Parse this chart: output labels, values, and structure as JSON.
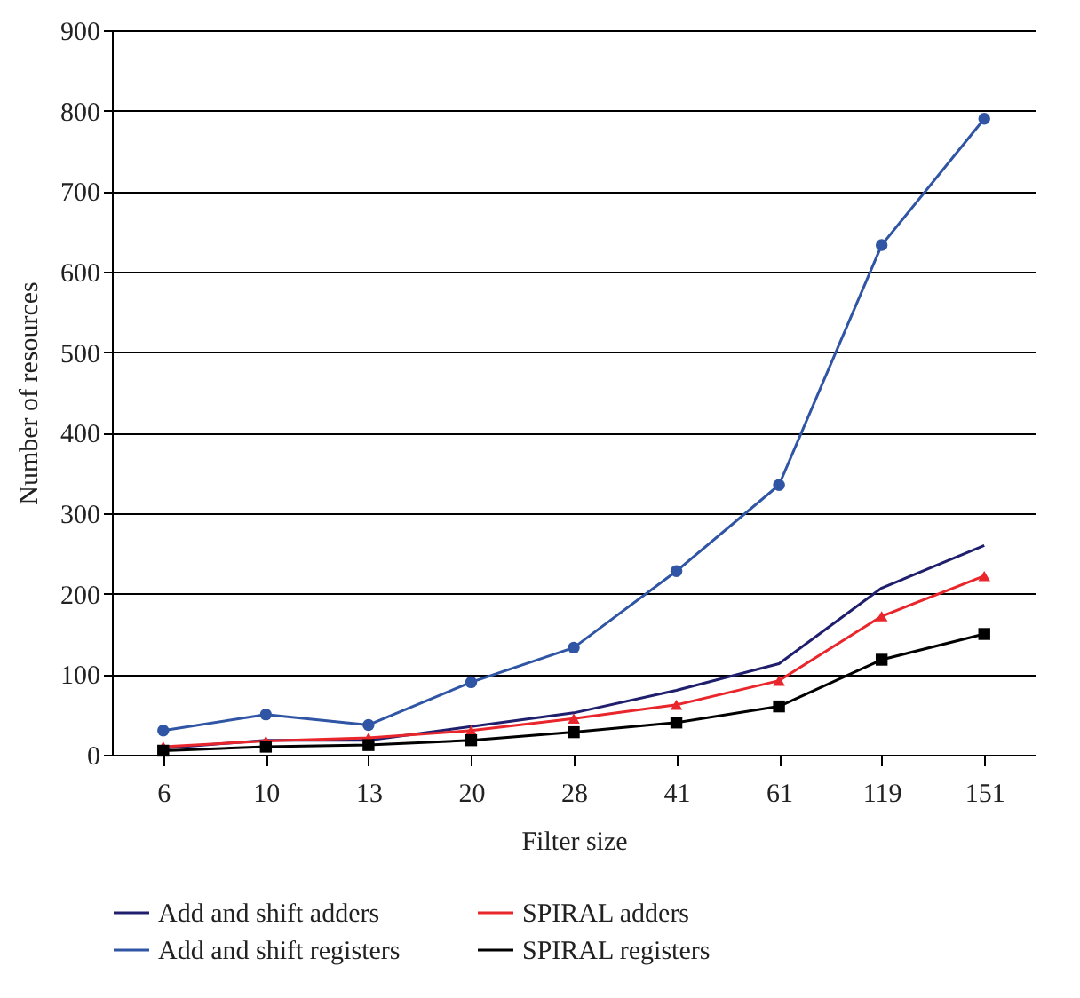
{
  "chart_data": {
    "type": "line",
    "xlabel": "Filter size",
    "ylabel": "Number of resources",
    "categories": [
      "6",
      "10",
      "13",
      "20",
      "28",
      "41",
      "61",
      "119",
      "151"
    ],
    "ylim": [
      0,
      900
    ],
    "yticks": [
      0,
      100,
      200,
      300,
      400,
      500,
      600,
      700,
      800,
      900
    ],
    "grid": "y",
    "legend": "bottom",
    "series": [
      {
        "name": "Add and shift adders",
        "color": "#1f1f6e",
        "marker": "none",
        "values": [
          8,
          18,
          18,
          35,
          52,
          80,
          113,
          207,
          260
        ]
      },
      {
        "name": "SPIRAL adders",
        "color": "#e8262b",
        "marker": "triangle",
        "values": [
          10,
          17,
          21,
          30,
          45,
          62,
          92,
          172,
          222
        ]
      },
      {
        "name": "Add and shift registers",
        "color": "#2f55a4",
        "marker": "circle",
        "values": [
          30,
          50,
          37,
          90,
          133,
          228,
          335,
          633,
          790
        ]
      },
      {
        "name": "SPIRAL registers",
        "color": "#000000",
        "marker": "square",
        "values": [
          5,
          10,
          12,
          18,
          28,
          40,
          60,
          118,
          150
        ]
      }
    ]
  }
}
